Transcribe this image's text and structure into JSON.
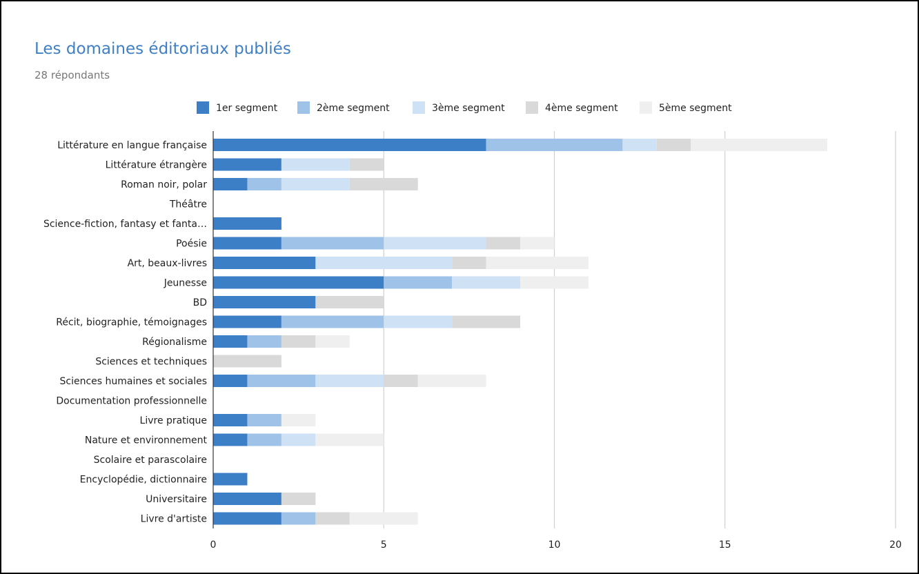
{
  "chart_data": {
    "type": "bar",
    "orientation": "horizontal",
    "stacked": true,
    "title": "Les domaines éditoriaux publiés",
    "subtitle": "28 répondants",
    "legend_position": "top",
    "grid": true,
    "xlim": [
      0,
      20
    ],
    "x_ticks": [
      "0",
      "5",
      "10",
      "15",
      "20"
    ],
    "categories": [
      "Littérature en langue française",
      "Littérature étrangère",
      "Roman noir, polar",
      "Théâtre",
      "Science-fiction, fantasy et fanta…",
      "Poésie",
      "Art, beaux-livres",
      "Jeunesse",
      "BD",
      "Récit, biographie, témoignages",
      "Régionalisme",
      "Sciences et techniques",
      "Sciences humaines et sociales",
      "Documentation professionnelle",
      "Livre pratique",
      "Nature et environnement",
      "Scolaire et parascolaire",
      "Encyclopédie, dictionnaire",
      "Universitaire",
      "Livre d'artiste"
    ],
    "series": [
      {
        "name": "1er segment",
        "color": "#3d7fc6",
        "values": [
          8,
          2,
          1,
          0,
          2,
          2,
          3,
          5,
          3,
          2,
          1,
          0,
          1,
          0,
          1,
          1,
          0,
          1,
          2,
          2
        ]
      },
      {
        "name": "2ème segment",
        "color": "#9fc3e8",
        "values": [
          4,
          0,
          1,
          0,
          0,
          3,
          0,
          2,
          0,
          3,
          1,
          0,
          2,
          0,
          1,
          1,
          0,
          0,
          0,
          1
        ]
      },
      {
        "name": "3ème segment",
        "color": "#cfe2f5",
        "values": [
          1,
          2,
          2,
          0,
          0,
          3,
          4,
          2,
          0,
          2,
          0,
          0,
          2,
          0,
          0,
          1,
          0,
          0,
          0,
          0
        ]
      },
      {
        "name": "4ème segment",
        "color": "#d9d9d9",
        "values": [
          1,
          1,
          2,
          0,
          0,
          1,
          1,
          0,
          2,
          2,
          1,
          2,
          1,
          0,
          0,
          0,
          0,
          0,
          1,
          1
        ]
      },
      {
        "name": "5ème segment",
        "color": "#efefef",
        "values": [
          4,
          0,
          0,
          0,
          0,
          1,
          3,
          2,
          0,
          0,
          1,
          0,
          2,
          0,
          1,
          2,
          0,
          0,
          0,
          2
        ]
      }
    ]
  }
}
